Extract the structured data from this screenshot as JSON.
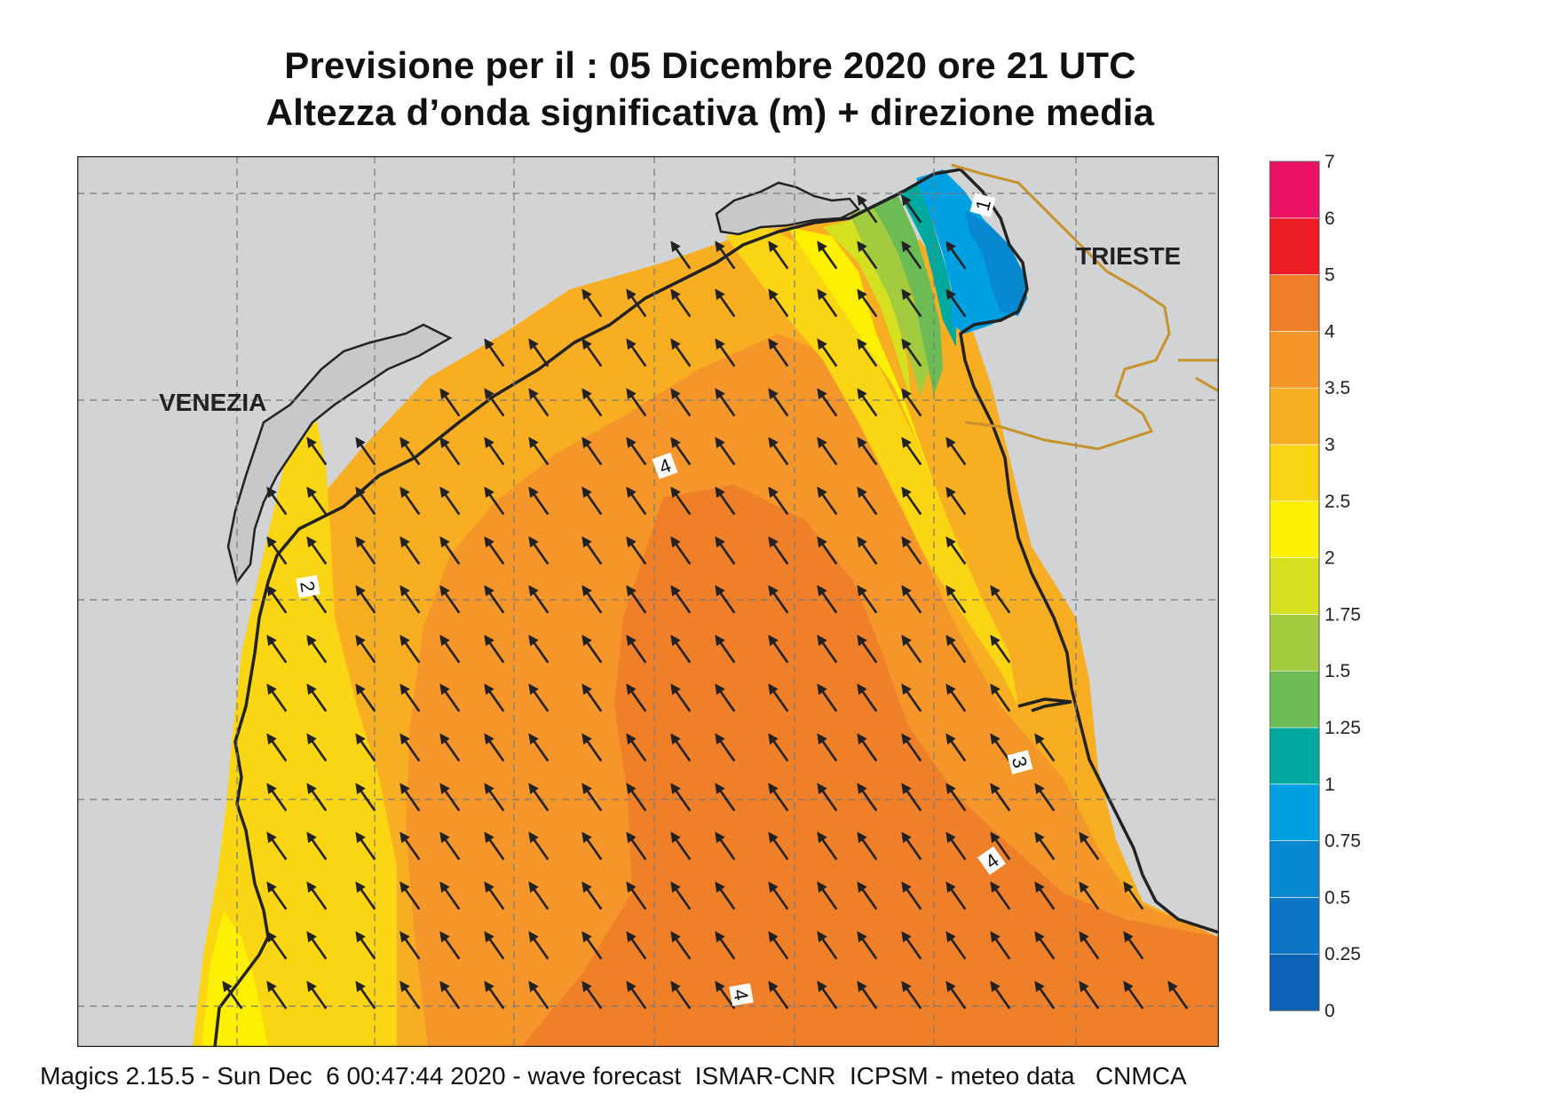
{
  "title": {
    "line1": "Previsione per il  :  05 Dicembre  2020   ore 21 UTC",
    "line2": "Altezza d’onda significativa (m) + direzione media"
  },
  "map": {
    "cities": [
      {
        "name": "VENEZIA"
      },
      {
        "name": "TRIESTE"
      }
    ],
    "contour_labels": [
      "1",
      "2",
      "3",
      "4",
      "4",
      "4"
    ],
    "arrow_direction": "north-west",
    "colors": {
      "land": "#d2d3d4",
      "sea_4": "#f07f2a",
      "sea_35": "#f5962a",
      "sea_3": "#f7ae22",
      "sea_25": "#fad514",
      "sea_2": "#fdf003",
      "sea_175": "#d5e020",
      "sea_15": "#a3cb3f",
      "sea_125": "#6cbb55",
      "sea_1": "#00a99f",
      "sea_075": "#00a0e3",
      "sea_05": "#0687d0",
      "border": "#c8922b",
      "coast": "#222222"
    }
  },
  "legend": {
    "levels": [
      "0",
      "0.25",
      "0.5",
      "0.75",
      "1",
      "1.25",
      "1.5",
      "1.75",
      "2",
      "2.5",
      "3",
      "3.5",
      "4",
      "5",
      "6",
      "7"
    ],
    "colors": [
      "#0c63b5",
      "#0b75c6",
      "#0687d0",
      "#00a0e3",
      "#00a99f",
      "#6cbb55",
      "#a3cb3f",
      "#d5e020",
      "#fdf003",
      "#fad514",
      "#f7ae22",
      "#f5962a",
      "#f07f2a",
      "#ec1c24",
      "#ec1266"
    ]
  },
  "footer": "Magics 2.15.5 - Sun Dec  6 00:47:44 2020 - wave forecast  ISMAR-CNR  ICPSM - meteo data   CNMCA"
}
